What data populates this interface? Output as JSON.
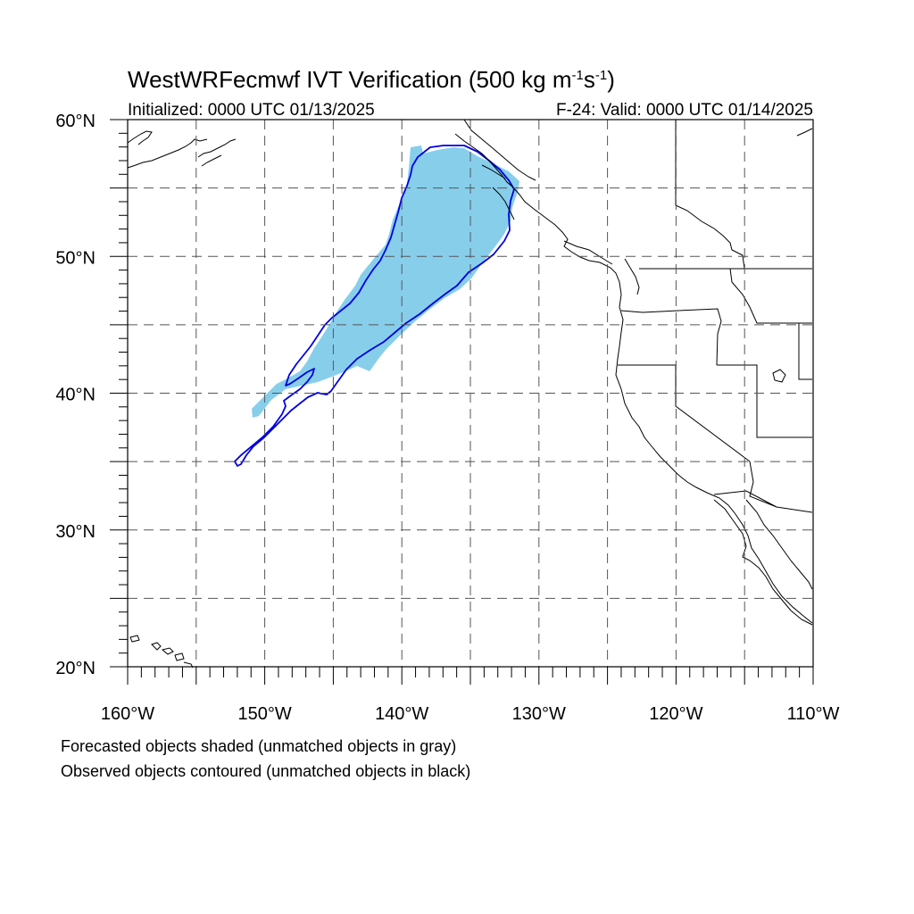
{
  "title": {
    "main_prefix": "WestWRFecmwf IVT Verification (500 kg m",
    "sup1": "-1",
    "mid": "s",
    "sup2": "-1",
    "suffix": ")"
  },
  "subtitle": {
    "initialized": "Initialized: 0000 UTC 01/13/2025",
    "valid": "F-24: Valid: 0000 UTC 01/14/2025"
  },
  "map": {
    "lon_range": [
      -160,
      -110
    ],
    "lat_range": [
      20,
      60
    ],
    "lon_gridlines": [
      -155,
      -150,
      -145,
      -140,
      -135,
      -130,
      -125,
      -120,
      -115
    ],
    "lat_gridlines": [
      25,
      30,
      35,
      40,
      45,
      50,
      55
    ],
    "lon_labels": [
      {
        "lon": -160,
        "text": "160°W"
      },
      {
        "lon": -150,
        "text": "150°W"
      },
      {
        "lon": -140,
        "text": "140°W"
      },
      {
        "lon": -130,
        "text": "130°W"
      },
      {
        "lon": -120,
        "text": "120°W"
      },
      {
        "lon": -110,
        "text": "110°W"
      }
    ],
    "lat_labels": [
      {
        "lat": 60,
        "text": "60°N"
      },
      {
        "lat": 50,
        "text": "50°N"
      },
      {
        "lat": 40,
        "text": "40°N"
      },
      {
        "lat": 30,
        "text": "30°N"
      },
      {
        "lat": 20,
        "text": "20°N"
      }
    ],
    "forecast_fill_color": "#87ceeb",
    "observed_contour_color": "#0000e0"
  },
  "captions": {
    "line1": "Forecasted objects shaded (unmatched objects in gray)",
    "line2": "Observed objects contoured (unmatched objects in black)"
  }
}
